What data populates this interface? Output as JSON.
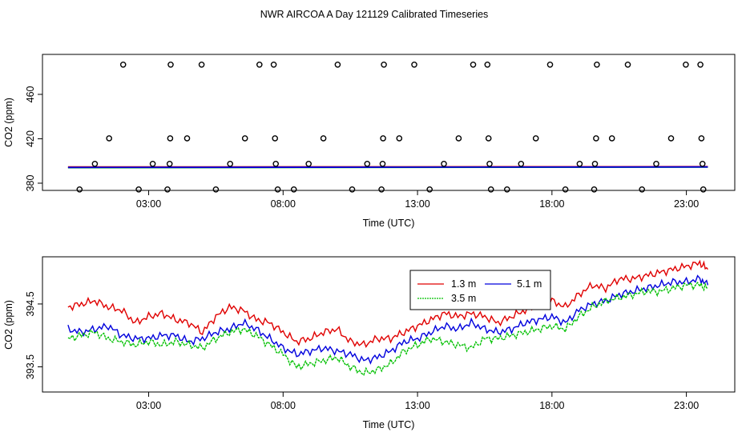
{
  "title": "NWR AIRCOA A  Day 121129  Calibrated Timeseries",
  "chart_data": [
    {
      "type": "scatter",
      "xlabel": "Time (UTC)",
      "ylabel": "CO2 (ppm)",
      "xticks": [
        3,
        8,
        13,
        18,
        23
      ],
      "xtick_labels": [
        "03:00",
        "08:00",
        "13:00",
        "18:00",
        "23:00"
      ],
      "yticks": [
        380,
        420,
        460
      ],
      "xlim": [
        -0.95,
        24.8
      ],
      "ylim": [
        373.5,
        496
      ],
      "grid": false,
      "points": [
        {
          "x": 0.43,
          "y": 374.4
        },
        {
          "x": 1.0,
          "y": 397.4
        },
        {
          "x": 1.53,
          "y": 420.4
        },
        {
          "x": 2.05,
          "y": 486.8
        },
        {
          "x": 2.63,
          "y": 374.4
        },
        {
          "x": 3.15,
          "y": 397.4
        },
        {
          "x": 3.7,
          "y": 374.4
        },
        {
          "x": 3.78,
          "y": 397.4
        },
        {
          "x": 3.8,
          "y": 420.4
        },
        {
          "x": 3.82,
          "y": 486.8
        },
        {
          "x": 4.43,
          "y": 420.4
        },
        {
          "x": 4.97,
          "y": 486.8
        },
        {
          "x": 5.5,
          "y": 374.4
        },
        {
          "x": 6.03,
          "y": 397.4
        },
        {
          "x": 6.58,
          "y": 420.4
        },
        {
          "x": 7.12,
          "y": 486.8
        },
        {
          "x": 7.65,
          "y": 486.8
        },
        {
          "x": 7.7,
          "y": 420.4
        },
        {
          "x": 7.73,
          "y": 397.4
        },
        {
          "x": 7.8,
          "y": 374.4
        },
        {
          "x": 8.4,
          "y": 374.4
        },
        {
          "x": 8.95,
          "y": 397.4
        },
        {
          "x": 9.5,
          "y": 420.4
        },
        {
          "x": 10.03,
          "y": 486.8
        },
        {
          "x": 10.57,
          "y": 374.4
        },
        {
          "x": 11.13,
          "y": 397.4
        },
        {
          "x": 11.66,
          "y": 374.4
        },
        {
          "x": 11.7,
          "y": 397.4
        },
        {
          "x": 11.72,
          "y": 420.4
        },
        {
          "x": 11.75,
          "y": 486.8
        },
        {
          "x": 12.32,
          "y": 420.4
        },
        {
          "x": 12.88,
          "y": 486.8
        },
        {
          "x": 13.45,
          "y": 374.4
        },
        {
          "x": 13.98,
          "y": 397.4
        },
        {
          "x": 14.53,
          "y": 420.4
        },
        {
          "x": 15.07,
          "y": 486.8
        },
        {
          "x": 15.6,
          "y": 486.8
        },
        {
          "x": 15.64,
          "y": 420.4
        },
        {
          "x": 15.68,
          "y": 397.4
        },
        {
          "x": 15.73,
          "y": 374.4
        },
        {
          "x": 16.33,
          "y": 374.4
        },
        {
          "x": 16.85,
          "y": 397.4
        },
        {
          "x": 17.4,
          "y": 420.4
        },
        {
          "x": 17.93,
          "y": 486.8
        },
        {
          "x": 18.5,
          "y": 374.4
        },
        {
          "x": 19.03,
          "y": 397.4
        },
        {
          "x": 19.57,
          "y": 374.4
        },
        {
          "x": 19.6,
          "y": 397.4
        },
        {
          "x": 19.64,
          "y": 420.4
        },
        {
          "x": 19.67,
          "y": 486.8
        },
        {
          "x": 20.23,
          "y": 420.4
        },
        {
          "x": 20.82,
          "y": 486.8
        },
        {
          "x": 21.35,
          "y": 374.4
        },
        {
          "x": 21.88,
          "y": 397.4
        },
        {
          "x": 22.43,
          "y": 420.4
        },
        {
          "x": 22.98,
          "y": 486.8
        },
        {
          "x": 23.52,
          "y": 486.8
        },
        {
          "x": 23.56,
          "y": 420.4
        },
        {
          "x": 23.6,
          "y": 397.4
        },
        {
          "x": 23.63,
          "y": 374.4
        }
      ],
      "series": [
        {
          "color": "#e00000",
          "x": [
            0,
            23.8
          ],
          "values": [
            394.6,
            394.9
          ]
        },
        {
          "color": "#00c000",
          "x": [
            0,
            23.8
          ],
          "values": [
            394.0,
            394.5
          ]
        },
        {
          "color": "#0000dd",
          "x": [
            0,
            23.8
          ],
          "values": [
            394.2,
            394.6
          ]
        }
      ]
    },
    {
      "type": "line",
      "xlabel": "Time (UTC)",
      "ylabel": "CO2 (ppm)",
      "xticks": [
        3,
        8,
        13,
        18,
        23
      ],
      "xtick_labels": [
        "03:00",
        "08:00",
        "13:00",
        "18:00",
        "23:00"
      ],
      "yticks": [
        393.5,
        394.5
      ],
      "ytick_labels": [
        "393.5",
        "394.5"
      ],
      "xlim": [
        -0.95,
        24.8
      ],
      "ylim": [
        393.1,
        395.25
      ],
      "grid": false,
      "legend_position": "top-right",
      "x": [
        0.0,
        0.5,
        1.0,
        1.5,
        2.0,
        2.5,
        3.0,
        3.5,
        4.0,
        4.5,
        5.0,
        5.5,
        6.0,
        6.5,
        7.0,
        7.5,
        8.0,
        8.5,
        9.0,
        9.5,
        10.0,
        10.5,
        11.0,
        11.5,
        12.0,
        12.5,
        13.0,
        13.5,
        14.0,
        14.5,
        15.0,
        15.5,
        16.0,
        16.5,
        17.0,
        17.5,
        18.0,
        18.5,
        19.0,
        19.5,
        20.0,
        20.5,
        21.0,
        21.5,
        22.0,
        22.5,
        23.0,
        23.5,
        23.8
      ],
      "series": [
        {
          "name": "1.3 m",
          "color": "#e00000",
          "values": [
            394.45,
            394.5,
            394.55,
            394.45,
            394.4,
            394.2,
            394.3,
            394.35,
            394.25,
            394.2,
            394.05,
            394.3,
            394.45,
            394.4,
            394.25,
            394.2,
            394.05,
            393.9,
            393.95,
            394.05,
            394.1,
            393.9,
            393.85,
            393.95,
            393.95,
            394.05,
            394.15,
            394.25,
            394.35,
            394.3,
            394.35,
            394.3,
            394.2,
            394.3,
            394.4,
            394.5,
            394.55,
            394.45,
            394.65,
            394.8,
            394.75,
            394.9,
            394.9,
            394.95,
            395.0,
            395.05,
            395.1,
            395.15,
            395.05
          ]
        },
        {
          "name": "5.1 m",
          "color": "#0000dd",
          "values": [
            394.1,
            394.05,
            394.1,
            394.15,
            394.0,
            393.95,
            393.95,
            394.0,
            394.0,
            393.9,
            393.95,
            394.05,
            394.1,
            394.2,
            394.1,
            393.95,
            393.8,
            393.7,
            393.75,
            393.8,
            393.75,
            393.7,
            393.6,
            393.65,
            393.75,
            393.9,
            393.95,
            394.05,
            394.15,
            394.1,
            394.2,
            394.1,
            394.05,
            394.1,
            394.2,
            394.25,
            394.3,
            394.2,
            394.4,
            394.5,
            394.55,
            394.65,
            394.7,
            394.75,
            394.8,
            394.85,
            394.85,
            394.9,
            394.8
          ]
        },
        {
          "name": "3.5 m",
          "color": "#00c000",
          "values": [
            393.95,
            394.0,
            394.05,
            393.95,
            393.9,
            393.85,
            393.9,
            393.85,
            393.9,
            393.85,
            393.8,
            393.95,
            394.05,
            394.1,
            394.0,
            393.85,
            393.7,
            393.5,
            393.55,
            393.6,
            393.65,
            393.5,
            393.4,
            393.45,
            393.55,
            393.75,
            393.85,
            393.95,
            393.9,
            393.85,
            393.8,
            393.95,
            393.95,
            394.0,
            394.05,
            394.1,
            394.15,
            394.1,
            394.3,
            394.45,
            394.55,
            394.6,
            394.65,
            394.7,
            394.7,
            394.75,
            394.8,
            394.8,
            394.75
          ]
        }
      ]
    }
  ]
}
